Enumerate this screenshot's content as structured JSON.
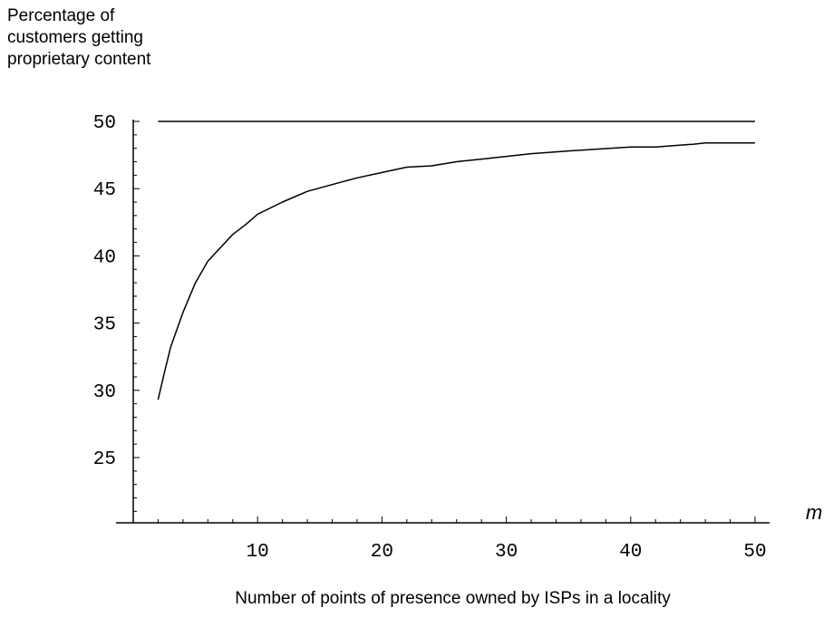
{
  "chart_data": {
    "type": "line",
    "ylabel": "Percentage of\ncustomers getting\nproprietary content",
    "xlabel": "Number of points of presence owned by ISPs in a locality",
    "xvar": "m",
    "xlim": [
      0,
      50
    ],
    "ylim": [
      20,
      50
    ],
    "xticks": [
      10,
      20,
      30,
      40,
      50
    ],
    "yticks": [
      25,
      30,
      35,
      40,
      45,
      50
    ],
    "grid": false,
    "series": [
      {
        "x": [
          2,
          2.5,
          3,
          4,
          5,
          6,
          8,
          9,
          10,
          12,
          14,
          16,
          18,
          20,
          22,
          24,
          26,
          28,
          30,
          32,
          35,
          40,
          42,
          45,
          46,
          48,
          50
        ],
        "y": [
          29.3,
          31.3,
          33.2,
          35.8,
          38.0,
          39.6,
          41.6,
          42.3,
          43.1,
          44.0,
          44.8,
          45.3,
          45.8,
          46.2,
          46.6,
          46.7,
          47.0,
          47.2,
          47.4,
          47.6,
          47.8,
          48.1,
          48.1,
          48.3,
          48.4,
          48.4,
          48.4
        ]
      },
      {
        "x": [
          2,
          50
        ],
        "y": [
          50,
          50
        ]
      }
    ]
  }
}
